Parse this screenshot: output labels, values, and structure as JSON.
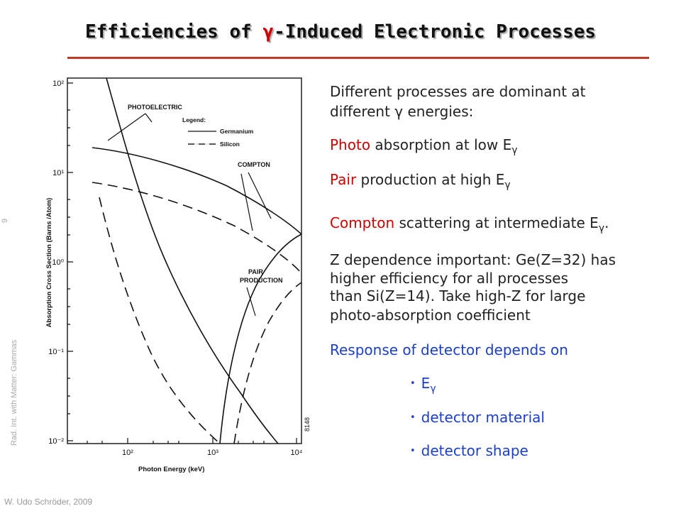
{
  "title": [
    "Efficiencies of ",
    "γ",
    "-Induced Electronic Processes"
  ],
  "sidebar": {
    "course": "Rad. Int. with Matter: Gammas",
    "page": "9"
  },
  "footer": "W. Udo Schröder, 2009",
  "figure": {
    "y_axis_label": "Absorption Cross Section (Barns /Atom)",
    "x_axis_label": "Photon Energy (keV)",
    "y_ticks": [
      "10²",
      "10¹",
      "10⁰",
      "10⁻¹",
      "10⁻²"
    ],
    "x_ticks": [
      "10²",
      "10³",
      "10⁴"
    ],
    "photoelectric": "PHOTOELECTRIC",
    "compton": "COMPTON",
    "pair": [
      "PAIR",
      "PRODUCTION"
    ],
    "legend": {
      "title": "Legend:",
      "items": [
        "Germanium",
        "Silicon"
      ]
    },
    "figure_id": "8148"
  },
  "body": [
    {
      "lines": [
        "Different processes are dominant at",
        "different γ energies:"
      ]
    },
    {
      "lead": "Photo",
      "text": " absorption at low E",
      "sub": "γ"
    },
    {
      "lead": "Pair",
      "text": " production at high E",
      "sub": "γ"
    },
    {
      "lead": "Compton",
      "text": " scattering at intermediate E",
      "sub": "γ",
      "tail": "."
    },
    {
      "lines": [
        "Z dependence important: Ge(Z=32) has",
        "higher efficiency for all processes",
        "than Si(Z=14). Take high-Z for large",
        "photo-absorption coefficient"
      ]
    },
    {
      "lines": [
        "Response of detector depends on"
      ],
      "color": "#1c3fc8"
    }
  ],
  "bullets": [
    {
      "text": "E",
      "sub": "γ"
    },
    {
      "text": "detector material"
    },
    {
      "text": "detector shape"
    }
  ]
}
